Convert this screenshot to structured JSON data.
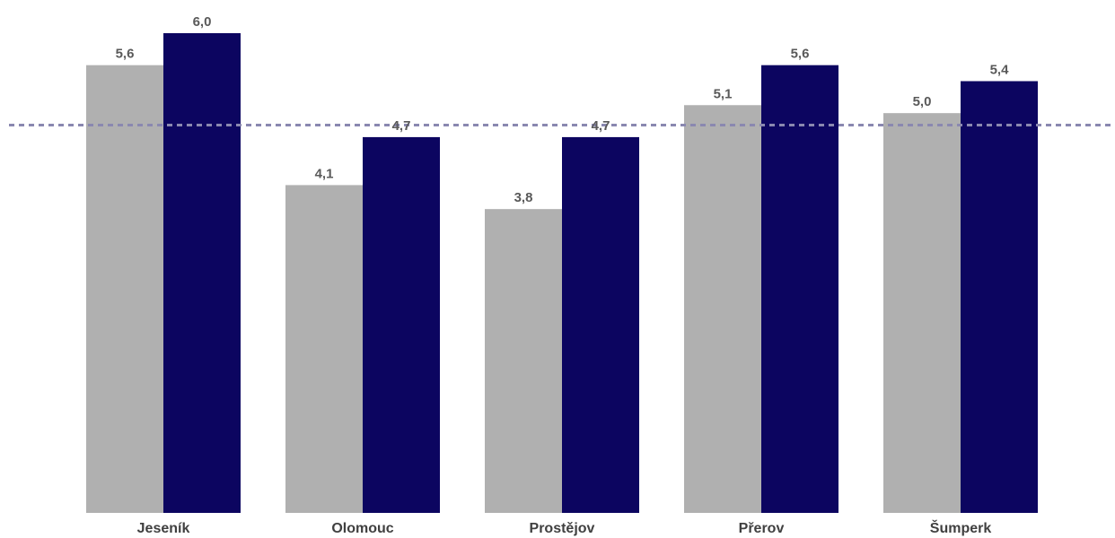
{
  "chart_data": {
    "type": "bar",
    "categories": [
      "Jeseník",
      "Olomouc",
      "Prostějov",
      "Přerov",
      "Šumperk"
    ],
    "series": [
      {
        "values": [
          5.6,
          4.1,
          3.8,
          5.1,
          5.0
        ],
        "color": "#b0b0b0"
      },
      {
        "values": [
          6.0,
          4.7,
          4.7,
          5.6,
          5.4
        ],
        "color": "#0c0560"
      }
    ],
    "value_labels": [
      [
        "5,6",
        "4,1",
        "3,8",
        "5,1",
        "5,0"
      ],
      [
        "6,0",
        "4,7",
        "4,7",
        "5,6",
        "5,4"
      ]
    ],
    "reference_line": {
      "value": 4.85,
      "style": "dashed",
      "color": "#8a88b0"
    },
    "ylim": [
      0,
      6.4
    ],
    "grid": false,
    "legend": "none",
    "title": "",
    "xlabel": "",
    "ylabel": ""
  }
}
